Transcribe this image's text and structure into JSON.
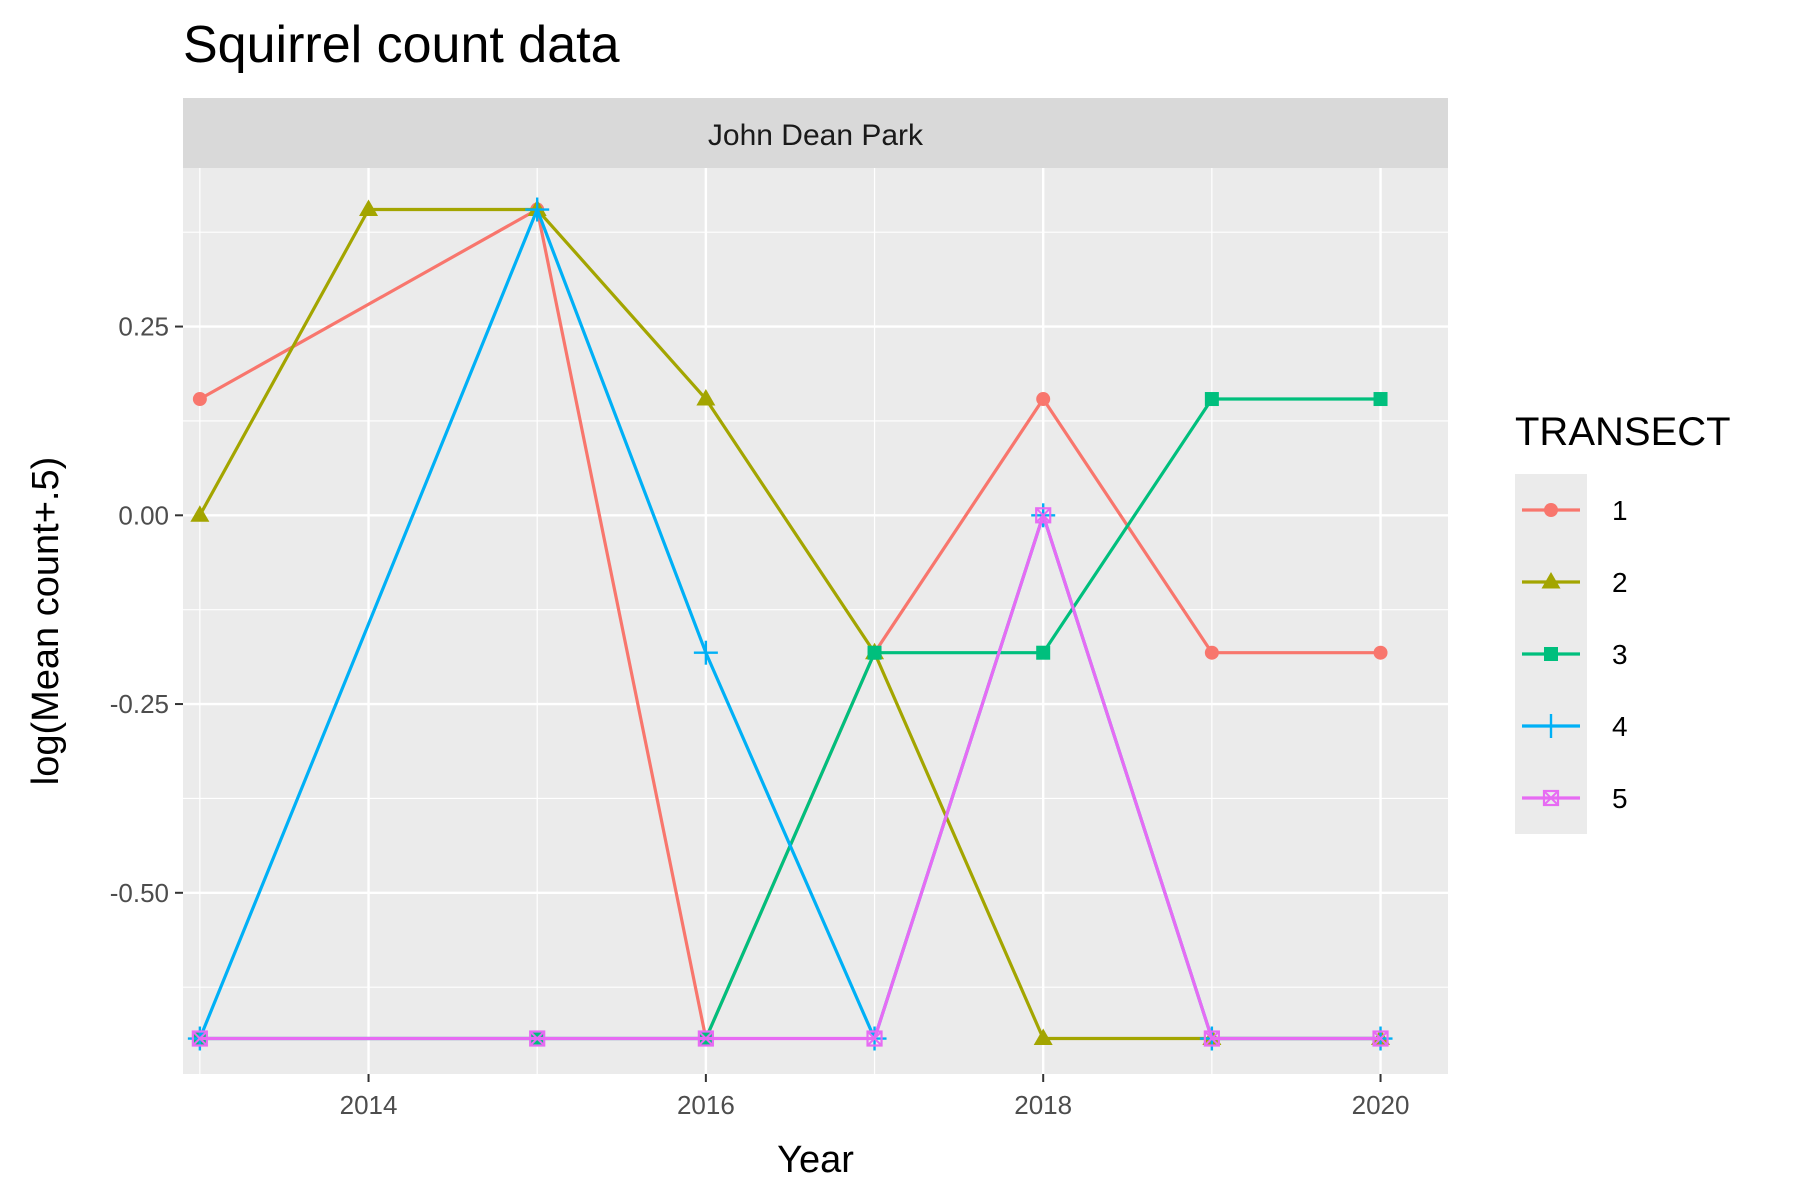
{
  "chart_data": {
    "type": "line",
    "title": "Squirrel count data",
    "facet": "John Dean Park",
    "xlabel": "Year",
    "ylabel": "log(Mean count+.5)",
    "x_ticks": [
      2014,
      2016,
      2018,
      2020
    ],
    "y_ticks": [
      0.25,
      0.0,
      -0.25,
      -0.5
    ],
    "y_tick_labels": [
      "0.25",
      "0.00",
      "-0.25",
      "-0.50"
    ],
    "xlim": [
      2012.9,
      2020.4
    ],
    "ylim": [
      -0.74,
      0.46
    ],
    "grid": true,
    "legend": {
      "title": "TRANSECT",
      "position": "right"
    },
    "series": [
      {
        "name": "1",
        "color": "#F8766D",
        "shape": "circle",
        "x": [
          2013,
          2015,
          2016,
          2017,
          2018,
          2019,
          2020
        ],
        "y": [
          0.154,
          0.405,
          -0.693,
          -0.182,
          0.154,
          -0.182,
          -0.182
        ]
      },
      {
        "name": "2",
        "color": "#A3A500",
        "shape": "triangle",
        "x": [
          2013,
          2014,
          2015,
          2016,
          2017,
          2018,
          2019,
          2020
        ],
        "y": [
          0.0,
          0.405,
          0.405,
          0.154,
          -0.182,
          -0.693,
          -0.693,
          -0.693
        ]
      },
      {
        "name": "3",
        "color": "#00BF7D",
        "shape": "square",
        "x": [
          2013,
          2015,
          2016,
          2017,
          2018,
          2019,
          2020
        ],
        "y": [
          -0.693,
          -0.693,
          -0.693,
          -0.182,
          -0.182,
          0.154,
          0.154
        ]
      },
      {
        "name": "4",
        "color": "#00B0F6",
        "shape": "plus",
        "x": [
          2013,
          2015,
          2016,
          2017,
          2018,
          2019,
          2020
        ],
        "y": [
          -0.693,
          0.405,
          -0.182,
          -0.693,
          0.0,
          -0.693,
          -0.693
        ]
      },
      {
        "name": "5",
        "color": "#E76BF3",
        "shape": "square-cross",
        "x": [
          2013,
          2015,
          2016,
          2017,
          2018,
          2019,
          2020
        ],
        "y": [
          -0.693,
          -0.693,
          -0.693,
          -0.693,
          0.0,
          -0.693,
          -0.693
        ]
      }
    ]
  }
}
